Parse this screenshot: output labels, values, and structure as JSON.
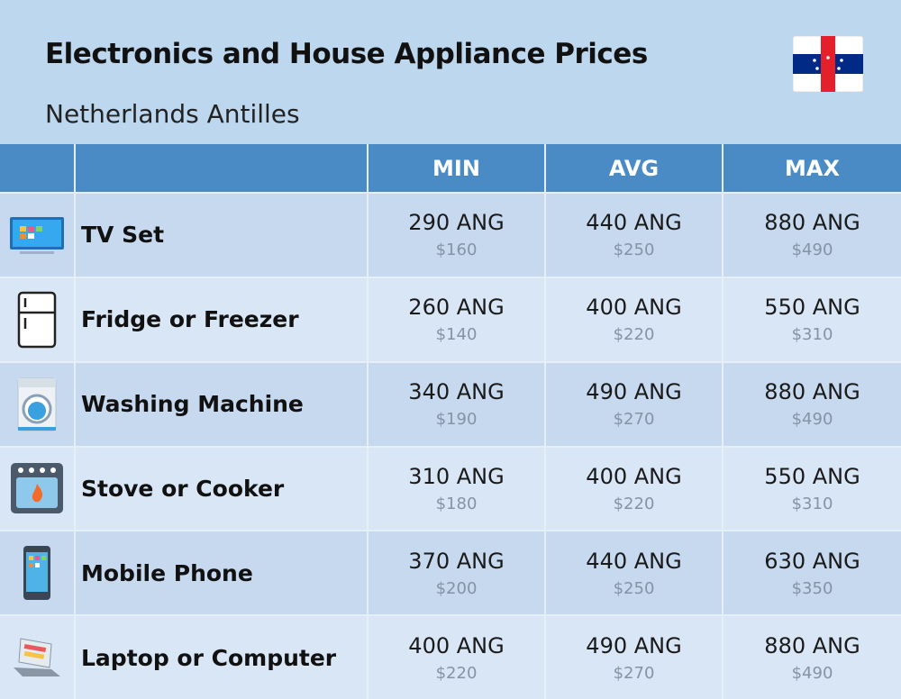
{
  "header": {
    "title": "Electronics and House Appliance Prices",
    "subtitle": "Netherlands Antilles"
  },
  "table": {
    "columns": [
      "MIN",
      "AVG",
      "MAX"
    ],
    "rows": [
      {
        "label": "TV Set",
        "cells": [
          {
            "local": "290 ANG",
            "usd": "$160"
          },
          {
            "local": "440 ANG",
            "usd": "$250"
          },
          {
            "local": "880 ANG",
            "usd": "$490"
          }
        ]
      },
      {
        "label": "Fridge or Freezer",
        "cells": [
          {
            "local": "260 ANG",
            "usd": "$140"
          },
          {
            "local": "400 ANG",
            "usd": "$220"
          },
          {
            "local": "550 ANG",
            "usd": "$310"
          }
        ]
      },
      {
        "label": "Washing Machine",
        "cells": [
          {
            "local": "340 ANG",
            "usd": "$190"
          },
          {
            "local": "490 ANG",
            "usd": "$270"
          },
          {
            "local": "880 ANG",
            "usd": "$490"
          }
        ]
      },
      {
        "label": "Stove or Cooker",
        "cells": [
          {
            "local": "310 ANG",
            "usd": "$180"
          },
          {
            "local": "400 ANG",
            "usd": "$220"
          },
          {
            "local": "550 ANG",
            "usd": "$310"
          }
        ]
      },
      {
        "label": "Mobile Phone",
        "cells": [
          {
            "local": "370 ANG",
            "usd": "$200"
          },
          {
            "local": "440 ANG",
            "usd": "$250"
          },
          {
            "local": "630 ANG",
            "usd": "$350"
          }
        ]
      },
      {
        "label": "Laptop or Computer",
        "cells": [
          {
            "local": "400 ANG",
            "usd": "$220"
          },
          {
            "local": "490 ANG",
            "usd": "$270"
          },
          {
            "local": "880 ANG",
            "usd": "$490"
          }
        ]
      }
    ]
  }
}
